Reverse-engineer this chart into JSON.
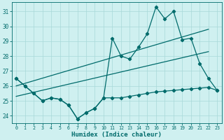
{
  "xlabel": "Humidex (Indice chaleur)",
  "x": [
    0,
    1,
    2,
    3,
    4,
    5,
    6,
    7,
    8,
    9,
    10,
    11,
    12,
    13,
    14,
    15,
    16,
    17,
    18,
    19,
    20,
    21,
    22,
    23
  ],
  "y_main": [
    26.5,
    26.0,
    25.5,
    25.0,
    25.2,
    25.1,
    24.7,
    23.8,
    24.2,
    24.5,
    25.2,
    29.2,
    28.0,
    27.8,
    28.6,
    29.5,
    31.3,
    30.5,
    31.0,
    29.1,
    29.2,
    27.5,
    26.5,
    25.7
  ],
  "y_low": [
    26.5,
    26.0,
    25.5,
    25.0,
    25.2,
    25.1,
    24.7,
    23.8,
    24.2,
    24.5,
    25.2,
    25.2,
    25.2,
    25.3,
    25.4,
    25.5,
    25.6,
    25.65,
    25.7,
    25.75,
    25.8,
    25.85,
    25.9,
    25.7
  ],
  "trend1_x": [
    0,
    22
  ],
  "trend1_y": [
    26.0,
    29.8
  ],
  "trend2_x": [
    0,
    22
  ],
  "trend2_y": [
    25.3,
    28.3
  ],
  "line_color": "#006b6b",
  "bg_color": "#cff0f0",
  "grid_color": "#a8d8d8",
  "ylim": [
    23.5,
    31.6
  ],
  "xlim": [
    -0.5,
    23.5
  ],
  "yticks": [
    24,
    25,
    26,
    27,
    28,
    29,
    30,
    31
  ],
  "xticks": [
    0,
    1,
    2,
    3,
    4,
    5,
    6,
    7,
    8,
    9,
    10,
    11,
    12,
    13,
    14,
    15,
    16,
    17,
    18,
    19,
    20,
    21,
    22,
    23
  ]
}
